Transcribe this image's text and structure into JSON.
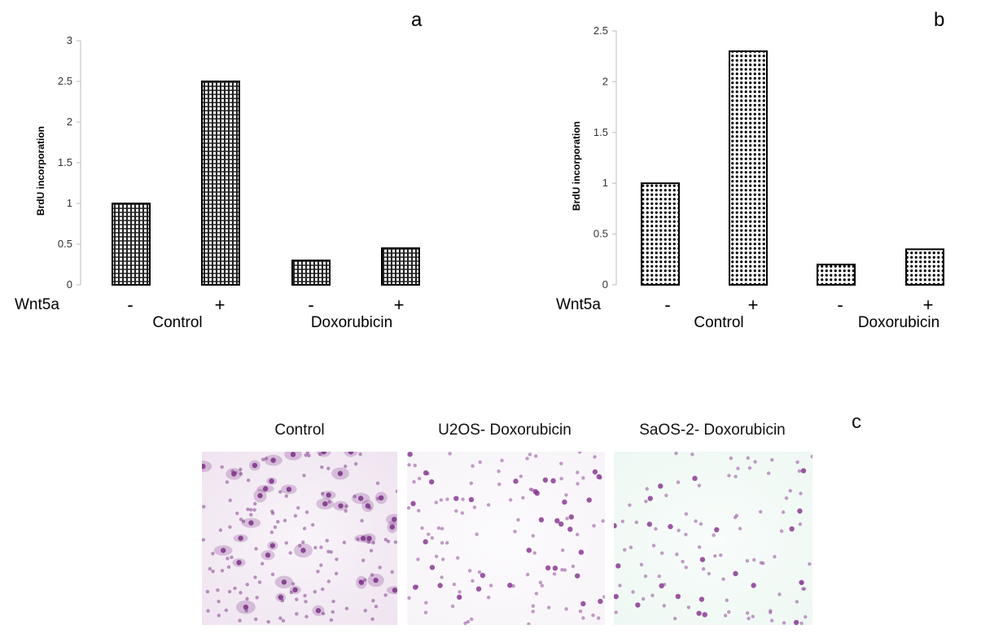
{
  "chart_data": [
    {
      "type": "bar",
      "panel_label": "a",
      "ylabel": "BrdU incorporation",
      "xlabel": "",
      "row_label": "Wnt5a",
      "ylim": [
        0,
        3
      ],
      "yticks": [
        "0",
        "0.5",
        "1",
        "1.5",
        "2",
        "2.5",
        "3"
      ],
      "ytick_values": [
        0,
        0.5,
        1,
        1.5,
        2,
        2.5,
        3
      ],
      "categories": [
        "-",
        "+",
        "-",
        "+"
      ],
      "groups": [
        "Control",
        "Doxorubicin"
      ],
      "values": [
        1.0,
        2.5,
        0.3,
        0.45
      ],
      "grid": false
    },
    {
      "type": "bar",
      "panel_label": "b",
      "ylabel": "BrdU incorporation",
      "xlabel": "",
      "row_label": "Wnt5a",
      "ylim": [
        0,
        2.5
      ],
      "yticks": [
        "0",
        "0.5",
        "1",
        "1.5",
        "2",
        "2.5"
      ],
      "ytick_values": [
        0,
        0.5,
        1,
        1.5,
        2,
        2.5
      ],
      "categories": [
        "-",
        "+",
        "-",
        "+"
      ],
      "groups": [
        "Control",
        "Doxorubicin"
      ],
      "values": [
        1.0,
        2.3,
        0.2,
        0.35
      ],
      "grid": false
    }
  ],
  "panel_c": {
    "label": "c",
    "images": [
      {
        "title": "Control",
        "bg": "#efe4f0",
        "cell_color": "#7a2f86",
        "cell_count": 170
      },
      {
        "title": "U2OS- Doxorubicin",
        "bg": "#f7f4f8",
        "cell_color": "#8a3a92",
        "cell_count": 130
      },
      {
        "title": "SaOS-2- Doxorubicin",
        "bg": "#eef8f3",
        "cell_color": "#8a3a92",
        "cell_count": 110
      }
    ]
  }
}
